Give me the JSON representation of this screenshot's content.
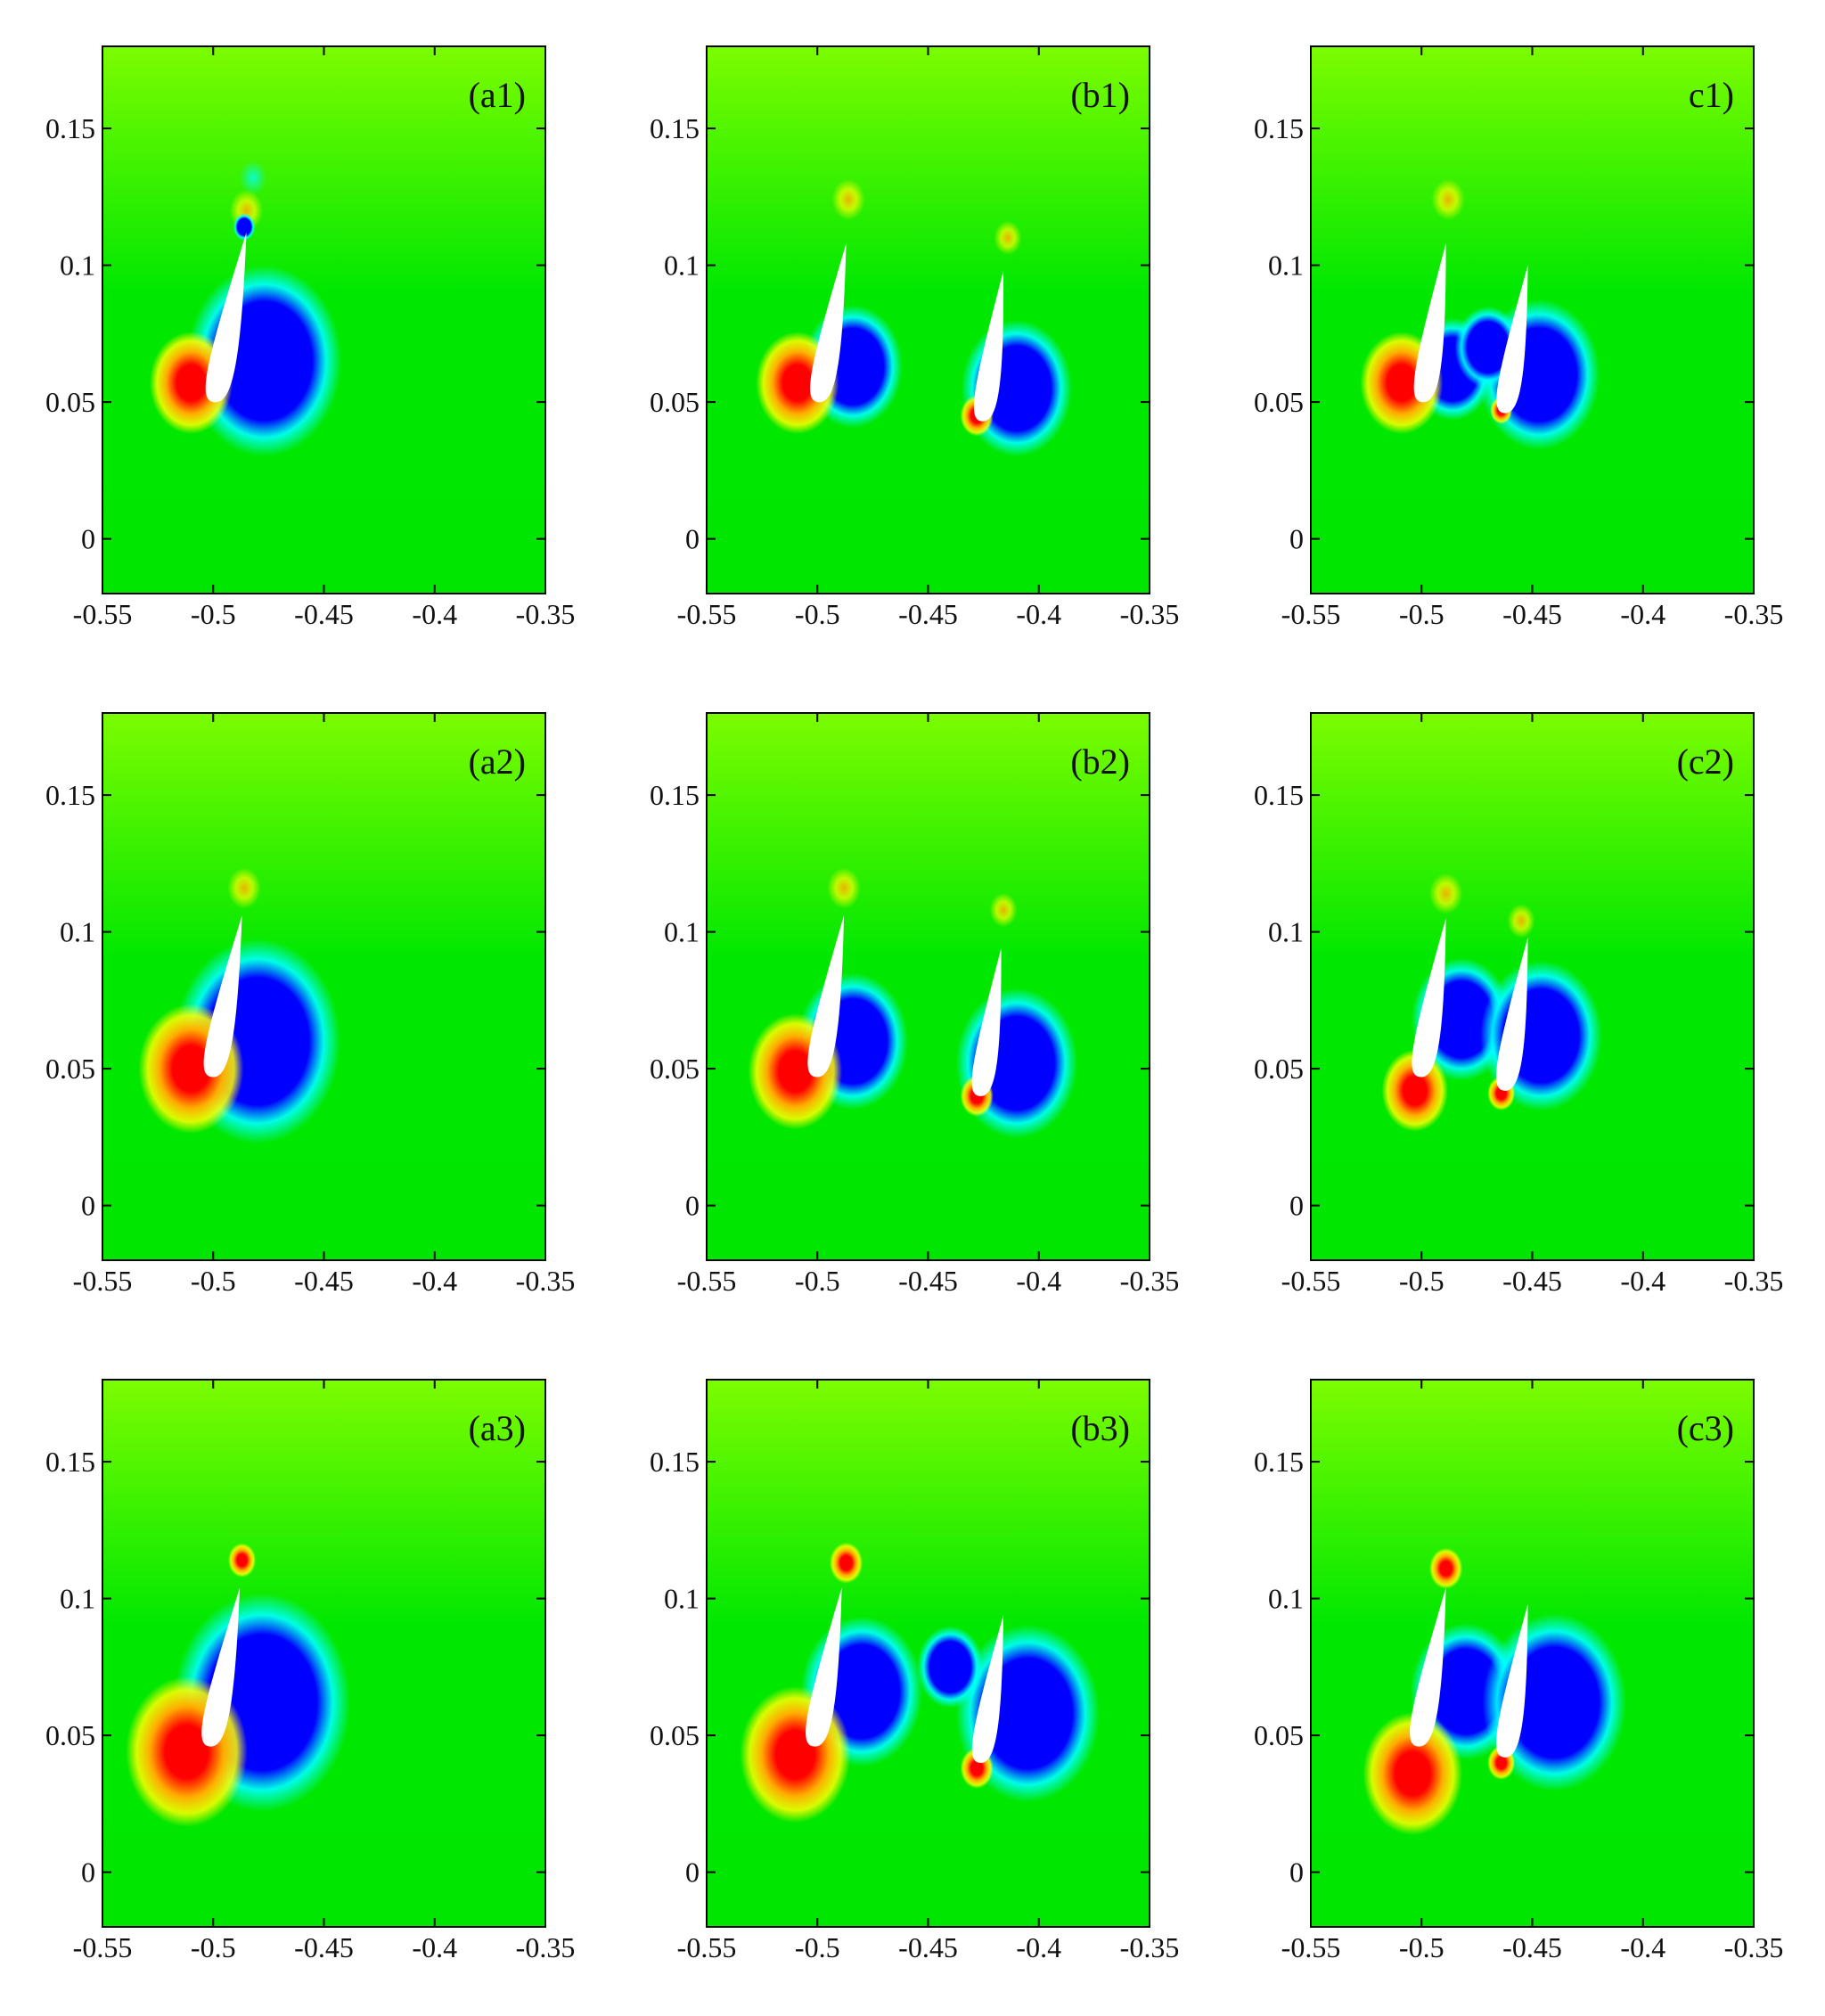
{
  "colors": {
    "background": "#00e600",
    "field_green": "#00e800",
    "field_yellow_green": "#7cfc00",
    "low_pressure": "#0000ff",
    "cyan_ring": "#00ffff",
    "high_pressure": "#ff0000",
    "orange_ring": "#ffaa00",
    "yellow_ring": "#ffff00",
    "airfoil": "#ffffff",
    "axis": "#000000"
  },
  "chart_data": [
    {
      "type": "heatmap",
      "panel_label": "(a1)",
      "xlim": [
        -0.55,
        -0.35
      ],
      "ylim": [
        -0.02,
        0.18
      ],
      "xticks": [
        "-0.55",
        "-0.5",
        "-0.45",
        "-0.4",
        "-0.35"
      ],
      "yticks": [
        "0",
        "0.05",
        "0.1",
        "0.15"
      ],
      "airfoils": [
        {
          "le_x": -0.5,
          "le_y": 0.05,
          "te_x": -0.485,
          "te_y": 0.112
        }
      ],
      "features": [
        {
          "kind": "high",
          "x": -0.51,
          "y": 0.057,
          "r": 0.015
        },
        {
          "kind": "low",
          "x": -0.477,
          "y": 0.065,
          "r": 0.028
        },
        {
          "kind": "low",
          "x": -0.486,
          "y": 0.114,
          "r": 0.004
        },
        {
          "kind": "warm",
          "x": -0.485,
          "y": 0.12,
          "r": 0.006
        },
        {
          "kind": "cool",
          "x": -0.482,
          "y": 0.132,
          "r": 0.005
        }
      ]
    },
    {
      "type": "heatmap",
      "panel_label": "(b1)",
      "xlim": [
        -0.55,
        -0.35
      ],
      "ylim": [
        -0.02,
        0.18
      ],
      "xticks": [
        "-0.55",
        "-0.5",
        "-0.45",
        "-0.4",
        "-0.35"
      ],
      "yticks": [
        "0",
        "0.05",
        "0.1",
        "0.15"
      ],
      "airfoils": [
        {
          "le_x": -0.5,
          "le_y": 0.05,
          "te_x": -0.487,
          "te_y": 0.108
        },
        {
          "le_x": -0.426,
          "le_y": 0.043,
          "te_x": -0.416,
          "te_y": 0.098
        }
      ],
      "features": [
        {
          "kind": "high",
          "x": -0.509,
          "y": 0.057,
          "r": 0.015
        },
        {
          "kind": "low",
          "x": -0.484,
          "y": 0.063,
          "r": 0.018
        },
        {
          "kind": "high",
          "x": -0.428,
          "y": 0.045,
          "r": 0.006
        },
        {
          "kind": "low",
          "x": -0.41,
          "y": 0.055,
          "r": 0.02
        },
        {
          "kind": "warm",
          "x": -0.486,
          "y": 0.124,
          "r": 0.006
        },
        {
          "kind": "warm",
          "x": -0.414,
          "y": 0.11,
          "r": 0.005
        }
      ]
    },
    {
      "type": "heatmap",
      "panel_label": "c1)",
      "xlim": [
        -0.55,
        -0.35
      ],
      "ylim": [
        -0.02,
        0.18
      ],
      "xticks": [
        "-0.55",
        "-0.5",
        "-0.45",
        "-0.4",
        "-0.35"
      ],
      "yticks": [
        "0",
        "0.05",
        "0.1",
        "0.15"
      ],
      "airfoils": [
        {
          "le_x": -0.5,
          "le_y": 0.05,
          "te_x": -0.489,
          "te_y": 0.108
        },
        {
          "le_x": -0.463,
          "le_y": 0.046,
          "te_x": -0.452,
          "te_y": 0.1
        }
      ],
      "features": [
        {
          "kind": "high",
          "x": -0.509,
          "y": 0.057,
          "r": 0.015
        },
        {
          "kind": "low",
          "x": -0.486,
          "y": 0.062,
          "r": 0.015
        },
        {
          "kind": "high",
          "x": -0.464,
          "y": 0.047,
          "r": 0.004
        },
        {
          "kind": "low",
          "x": -0.447,
          "y": 0.06,
          "r": 0.022
        },
        {
          "kind": "low",
          "x": -0.47,
          "y": 0.07,
          "r": 0.012
        },
        {
          "kind": "warm",
          "x": -0.488,
          "y": 0.124,
          "r": 0.006
        }
      ]
    },
    {
      "type": "heatmap",
      "panel_label": "(a2)",
      "xlim": [
        -0.55,
        -0.35
      ],
      "ylim": [
        -0.02,
        0.18
      ],
      "xticks": [
        "-0.55",
        "-0.5",
        "-0.45",
        "-0.4",
        "-0.35"
      ],
      "yticks": [
        "0",
        "0.05",
        "0.1",
        "0.15"
      ],
      "airfoils": [
        {
          "le_x": -0.501,
          "le_y": 0.047,
          "te_x": -0.487,
          "te_y": 0.106
        }
      ],
      "features": [
        {
          "kind": "high",
          "x": -0.51,
          "y": 0.05,
          "r": 0.019
        },
        {
          "kind": "low",
          "x": -0.48,
          "y": 0.06,
          "r": 0.03
        },
        {
          "kind": "warm",
          "x": -0.486,
          "y": 0.116,
          "r": 0.006
        }
      ]
    },
    {
      "type": "heatmap",
      "panel_label": "(b2)",
      "xlim": [
        -0.55,
        -0.35
      ],
      "ylim": [
        -0.02,
        0.18
      ],
      "xticks": [
        "-0.55",
        "-0.5",
        "-0.45",
        "-0.4",
        "-0.35"
      ],
      "yticks": [
        "0",
        "0.05",
        "0.1",
        "0.15"
      ],
      "airfoils": [
        {
          "le_x": -0.501,
          "le_y": 0.047,
          "te_x": -0.488,
          "te_y": 0.106
        },
        {
          "le_x": -0.427,
          "le_y": 0.04,
          "te_x": -0.417,
          "te_y": 0.094
        }
      ],
      "features": [
        {
          "kind": "high",
          "x": -0.51,
          "y": 0.049,
          "r": 0.017
        },
        {
          "kind": "low",
          "x": -0.484,
          "y": 0.06,
          "r": 0.02
        },
        {
          "kind": "high",
          "x": -0.428,
          "y": 0.04,
          "r": 0.006
        },
        {
          "kind": "low",
          "x": -0.41,
          "y": 0.052,
          "r": 0.022
        },
        {
          "kind": "warm",
          "x": -0.488,
          "y": 0.116,
          "r": 0.006
        },
        {
          "kind": "warm",
          "x": -0.416,
          "y": 0.108,
          "r": 0.005
        }
      ]
    },
    {
      "type": "heatmap",
      "panel_label": "(c2)",
      "xlim": [
        -0.55,
        -0.35
      ],
      "ylim": [
        -0.02,
        0.18
      ],
      "xticks": [
        "-0.55",
        "-0.5",
        "-0.45",
        "-0.4",
        "-0.35"
      ],
      "yticks": [
        "0",
        "0.05",
        "0.1",
        "0.15"
      ],
      "airfoils": [
        {
          "le_x": -0.501,
          "le_y": 0.047,
          "te_x": -0.489,
          "te_y": 0.105
        },
        {
          "le_x": -0.463,
          "le_y": 0.042,
          "te_x": -0.452,
          "te_y": 0.098
        }
      ],
      "features": [
        {
          "kind": "high",
          "x": -0.503,
          "y": 0.042,
          "r": 0.012
        },
        {
          "kind": "low",
          "x": -0.482,
          "y": 0.068,
          "r": 0.018
        },
        {
          "kind": "high",
          "x": -0.464,
          "y": 0.041,
          "r": 0.005
        },
        {
          "kind": "low",
          "x": -0.446,
          "y": 0.062,
          "r": 0.022
        },
        {
          "kind": "warm",
          "x": -0.489,
          "y": 0.114,
          "r": 0.006
        },
        {
          "kind": "warm",
          "x": -0.455,
          "y": 0.104,
          "r": 0.005
        }
      ]
    },
    {
      "type": "heatmap",
      "panel_label": "(a3)",
      "xlim": [
        -0.55,
        -0.35
      ],
      "ylim": [
        -0.02,
        0.18
      ],
      "xticks": [
        "-0.55",
        "-0.5",
        "-0.45",
        "-0.4",
        "-0.35"
      ],
      "yticks": [
        "0",
        "0.05",
        "0.1",
        "0.15"
      ],
      "airfoils": [
        {
          "le_x": -0.502,
          "le_y": 0.046,
          "te_x": -0.488,
          "te_y": 0.104
        }
      ],
      "features": [
        {
          "kind": "high",
          "x": -0.512,
          "y": 0.044,
          "r": 0.022
        },
        {
          "kind": "low",
          "x": -0.478,
          "y": 0.062,
          "r": 0.032
        },
        {
          "kind": "high",
          "x": -0.487,
          "y": 0.114,
          "r": 0.005
        }
      ]
    },
    {
      "type": "heatmap",
      "panel_label": "(b3)",
      "xlim": [
        -0.55,
        -0.35
      ],
      "ylim": [
        -0.02,
        0.18
      ],
      "xticks": [
        "-0.55",
        "-0.5",
        "-0.45",
        "-0.4",
        "-0.35"
      ],
      "yticks": [
        "0",
        "0.05",
        "0.1",
        "0.15"
      ],
      "airfoils": [
        {
          "le_x": -0.502,
          "le_y": 0.046,
          "te_x": -0.489,
          "te_y": 0.104
        },
        {
          "le_x": -0.427,
          "le_y": 0.04,
          "te_x": -0.416,
          "te_y": 0.094
        }
      ],
      "features": [
        {
          "kind": "high",
          "x": -0.51,
          "y": 0.043,
          "r": 0.02
        },
        {
          "kind": "low",
          "x": -0.48,
          "y": 0.066,
          "r": 0.022
        },
        {
          "kind": "high",
          "x": -0.428,
          "y": 0.038,
          "r": 0.006
        },
        {
          "kind": "low",
          "x": -0.405,
          "y": 0.058,
          "r": 0.026
        },
        {
          "kind": "low",
          "x": -0.44,
          "y": 0.075,
          "r": 0.012
        },
        {
          "kind": "high",
          "x": -0.487,
          "y": 0.113,
          "r": 0.006
        }
      ]
    },
    {
      "type": "heatmap",
      "panel_label": "(c3)",
      "xlim": [
        -0.55,
        -0.35
      ],
      "ylim": [
        -0.02,
        0.18
      ],
      "xticks": [
        "-0.55",
        "-0.5",
        "-0.45",
        "-0.4",
        "-0.35"
      ],
      "yticks": [
        "0",
        "0.05",
        "0.1",
        "0.15"
      ],
      "airfoils": [
        {
          "le_x": -0.502,
          "le_y": 0.046,
          "te_x": -0.489,
          "te_y": 0.104
        },
        {
          "le_x": -0.463,
          "le_y": 0.042,
          "te_x": -0.452,
          "te_y": 0.098
        }
      ],
      "features": [
        {
          "kind": "high",
          "x": -0.504,
          "y": 0.036,
          "r": 0.018
        },
        {
          "kind": "low",
          "x": -0.48,
          "y": 0.066,
          "r": 0.02
        },
        {
          "kind": "high",
          "x": -0.464,
          "y": 0.04,
          "r": 0.005
        },
        {
          "kind": "low",
          "x": -0.44,
          "y": 0.062,
          "r": 0.026
        },
        {
          "kind": "high",
          "x": -0.489,
          "y": 0.111,
          "r": 0.006
        }
      ]
    }
  ]
}
